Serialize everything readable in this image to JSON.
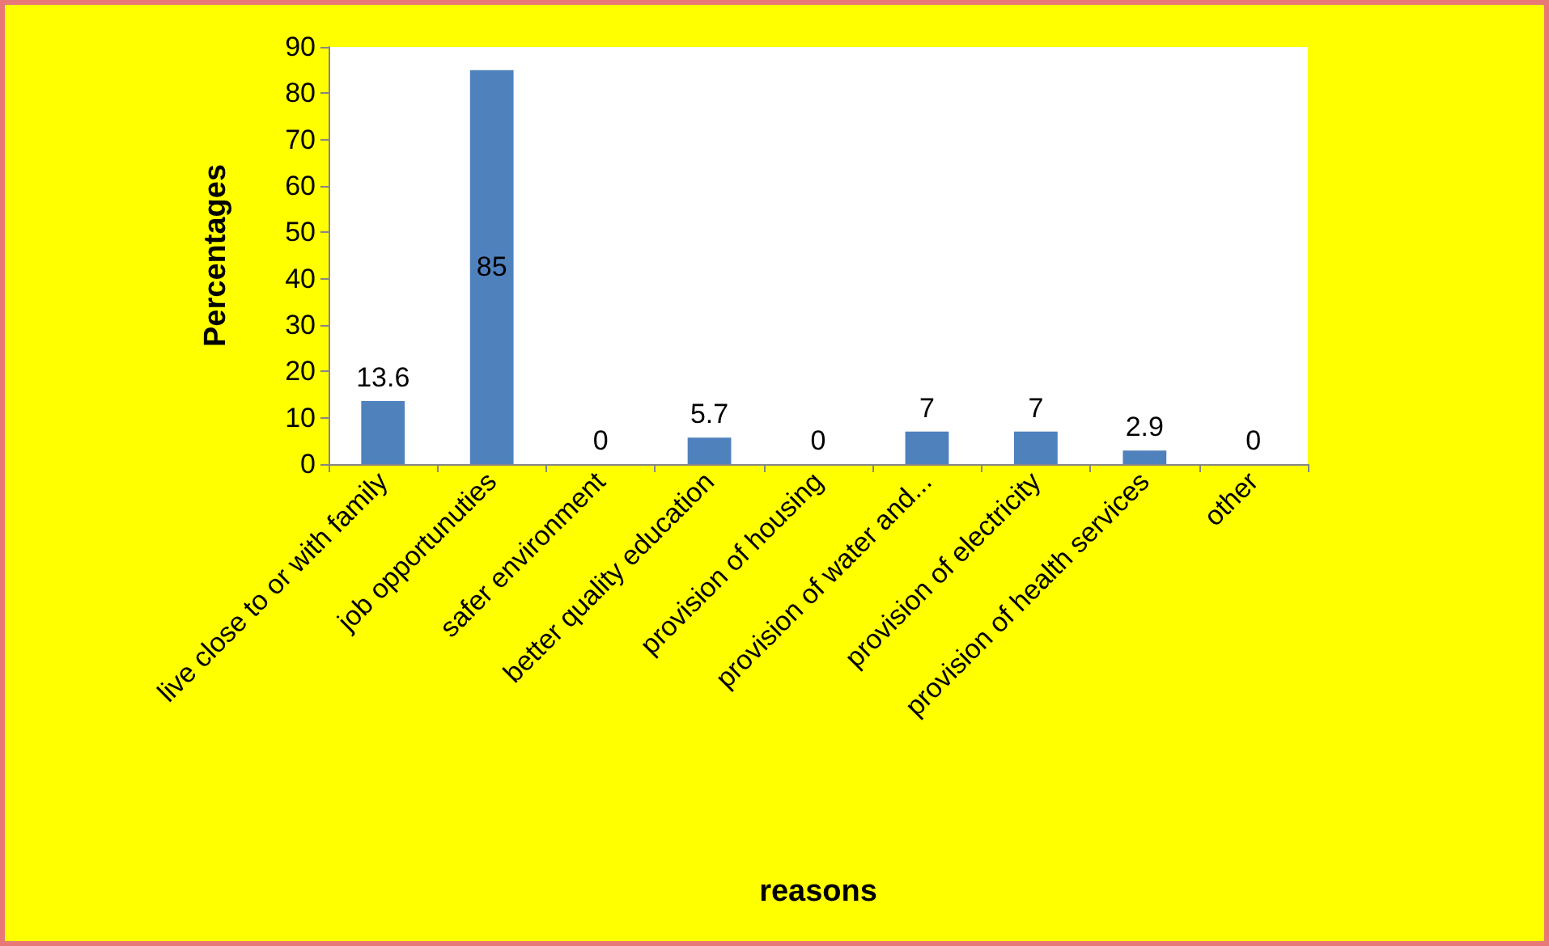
{
  "chart_data": {
    "type": "bar",
    "xlabel": "reasons",
    "ylabel": "Percentages",
    "categories": [
      "live close to or with family",
      "job opportunuties",
      "safer environment",
      "better quality education",
      "provision of housing",
      "provision of water and...",
      "provision of electricity",
      "provision of health services",
      "other"
    ],
    "values": [
      13.6,
      85,
      0,
      5.7,
      0,
      7,
      7,
      2.9,
      0
    ],
    "color": "#4f81bd",
    "ylim": [
      0,
      90
    ],
    "yticks": [
      0,
      10,
      20,
      30,
      40,
      50,
      60,
      70,
      80,
      90
    ],
    "grid": false,
    "data_labels": true
  }
}
